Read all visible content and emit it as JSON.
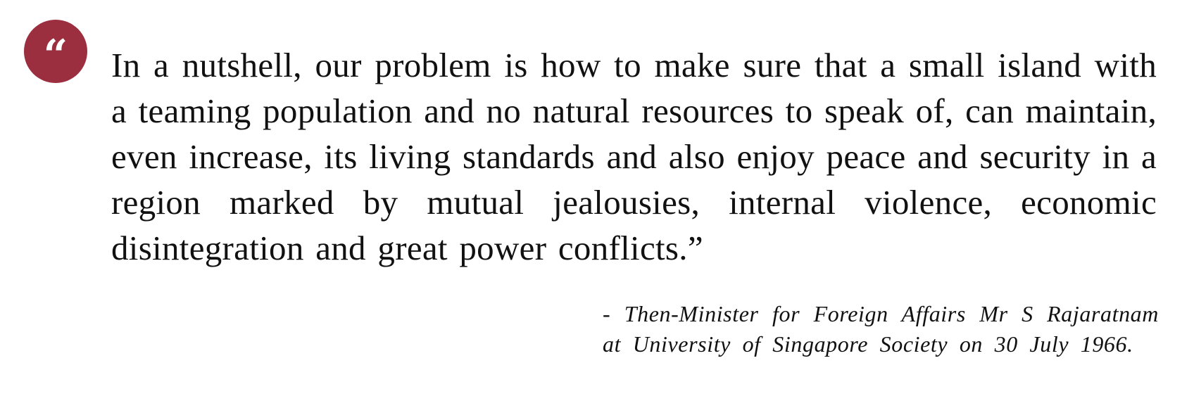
{
  "quote": {
    "mark": "“",
    "text": "In a nutshell, our problem is how to make sure that a small island with a teaming population and no natural resources to speak of, can maintain, even increase, its living standards and also enjoy peace and security in a region marked by mutual jealousies, internal violence, economic disintegration and great power conflicts.”",
    "attribution": "- Then-Minister for Foreign Affairs Mr S Rajaratnam at University of Singapore Society on 30 July 1966."
  },
  "colors": {
    "accent": "#9c2f3f",
    "text": "#111111",
    "background": "#ffffff"
  }
}
